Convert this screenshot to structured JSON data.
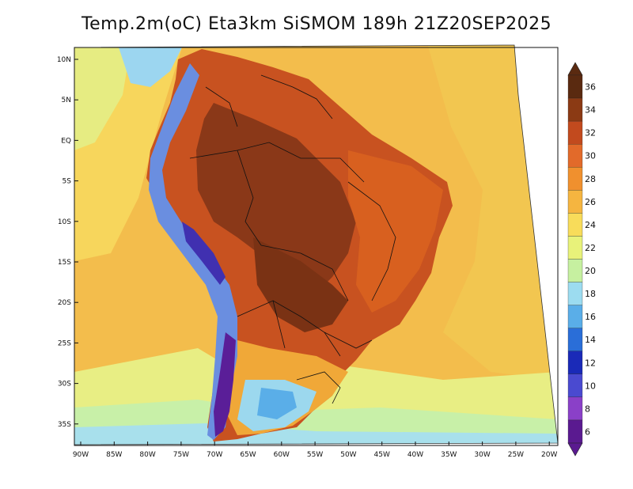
{
  "title": "Temp.2m(oC) Eta3km SiSMOM 189h 21Z20SEP2025",
  "lat_ticks": [
    "10N",
    "5N",
    "EQ",
    "5S",
    "10S",
    "15S",
    "20S",
    "25S",
    "30S",
    "35S"
  ],
  "lon_ticks": [
    "90W",
    "85W",
    "80W",
    "75W",
    "70W",
    "65W",
    "60W",
    "55W",
    "50W",
    "45W",
    "40W",
    "35W",
    "30W",
    "25W",
    "20W"
  ],
  "colorbar": {
    "labels": [
      "36",
      "34",
      "32",
      "30",
      "28",
      "26",
      "24",
      "22",
      "20",
      "18",
      "16",
      "14",
      "12",
      "10",
      "8",
      "6"
    ],
    "colors": [
      "#5a2a10",
      "#8b3a14",
      "#c24a1e",
      "#e26a2a",
      "#f0902e",
      "#f5b540",
      "#f8dc5a",
      "#e8f27a",
      "#c6f0a0",
      "#9cdcf0",
      "#5aaee8",
      "#2a6ed8",
      "#1a2ab8",
      "#4a4ad0",
      "#8a40c8",
      "#5a1a90"
    ]
  },
  "colors": {
    "ocean_warm": "#f2b548",
    "ocean_cool": "#f5d25a",
    "ocean_cold": "#e8e872",
    "land_hot": "#8a3a18",
    "land_warm": "#c8501c",
    "andes_cold": "#4a6ad0"
  }
}
